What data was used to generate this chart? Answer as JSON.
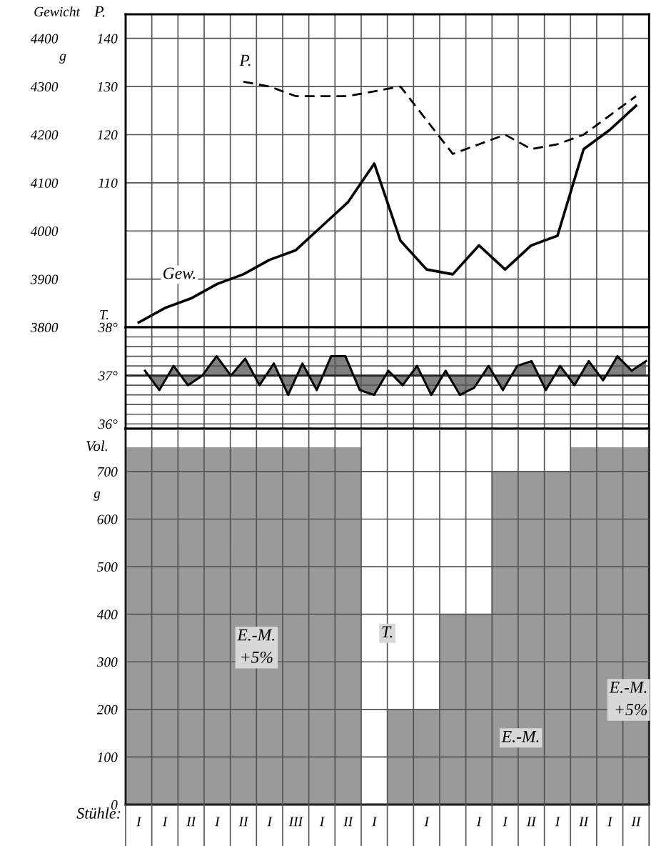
{
  "chart_data": [
    {
      "type": "line",
      "ylabel": "Gewicht",
      "y2label": "P.",
      "annotations": [
        "g"
      ],
      "categories": [
        null,
        null,
        null,
        null,
        null,
        null,
        null,
        null,
        null,
        null,
        null,
        null,
        null,
        null,
        null,
        null,
        null,
        null,
        null,
        null
      ],
      "series": [
        {
          "name": "Gew.",
          "color": "#000000",
          "line_style": "solid",
          "values": [
            3810,
            3840,
            3860,
            3890,
            3910,
            3940,
            3960,
            4010,
            4060,
            4140,
            3980,
            3920,
            3910,
            3970,
            3920,
            3970,
            3990,
            4170,
            4210,
            4260
          ]
        },
        {
          "name": "P.",
          "color": "#000000",
          "line_style": "dashed",
          "axis": "y2",
          "values": [
            null,
            null,
            null,
            null,
            131,
            130,
            128,
            128,
            128,
            129,
            130,
            123,
            116,
            118,
            120,
            117,
            118,
            120,
            124,
            128
          ]
        }
      ],
      "ylim": [
        3800,
        4450
      ],
      "yticks": [
        3800,
        3900,
        4000,
        4100,
        4200,
        4300,
        4400
      ],
      "y2lim": [
        80,
        145
      ],
      "y2ticks": [
        110,
        120,
        130,
        140
      ],
      "tick_labels": "y",
      "grid": true
    },
    {
      "type": "area",
      "ylabel": "T.",
      "categories": [
        null,
        null,
        null,
        null,
        null,
        null,
        null,
        null,
        null,
        null,
        null,
        null,
        null,
        null,
        null,
        null,
        null,
        null,
        null,
        null,
        null,
        null,
        null,
        null,
        null,
        null,
        null,
        null,
        null,
        null,
        null,
        null,
        null,
        null,
        null,
        null
      ],
      "series": [
        {
          "color": "#808080",
          "values": [
            37.1,
            36.7,
            37.2,
            36.8,
            37.0,
            37.4,
            37.0,
            37.35,
            36.8,
            37.25,
            36.6,
            37.25,
            36.7,
            37.4,
            37.4,
            36.7,
            36.6,
            37.1,
            36.8,
            37.2,
            36.6,
            37.1,
            36.6,
            36.75,
            37.2,
            36.7,
            37.2,
            37.3,
            36.7,
            37.2,
            36.8,
            37.3,
            36.9,
            37.4,
            37.1,
            37.3
          ]
        }
      ],
      "ref_lines": [
        {
          "axis": "y",
          "value": 37
        }
      ],
      "ylim": [
        35.9,
        38
      ],
      "yticks": [
        {
          "value": 36,
          "label": "36°"
        },
        {
          "value": 36.2,
          "label": null
        },
        {
          "value": 36.4,
          "label": null
        },
        {
          "value": 36.6,
          "label": null
        },
        {
          "value": 36.8,
          "label": null
        },
        {
          "value": 37,
          "label": "37°"
        },
        {
          "value": 37.2,
          "label": null
        },
        {
          "value": 37.4,
          "label": null
        },
        {
          "value": 37.6,
          "label": null
        },
        {
          "value": 37.8,
          "label": null
        },
        {
          "value": 38,
          "label": "38°"
        }
      ],
      "tick_labels": "y",
      "grid": true
    },
    {
      "type": "bar",
      "ylabel": "Vol.",
      "xlabel": "Stühle:",
      "annotations": [
        "g",
        "E.-M.\n+5%",
        "T.",
        "E.-M.",
        "E.-M.\n+5%"
      ],
      "categories": [
        "I",
        "I",
        "II",
        "I",
        "II",
        "I",
        "III",
        "I",
        "II",
        "I",
        null,
        "I",
        null,
        "I",
        "I",
        "II",
        "I",
        "II",
        "I",
        "II"
      ],
      "values": [
        750,
        750,
        750,
        750,
        750,
        750,
        750,
        750,
        750,
        0,
        200,
        200,
        400,
        400,
        700,
        700,
        700,
        750,
        750,
        750
      ],
      "color": "#9a9a9a",
      "ylim": [
        0,
        790
      ],
      "yticks": [
        0,
        100,
        200,
        300,
        400,
        500,
        600,
        700
      ],
      "grid": true
    }
  ]
}
